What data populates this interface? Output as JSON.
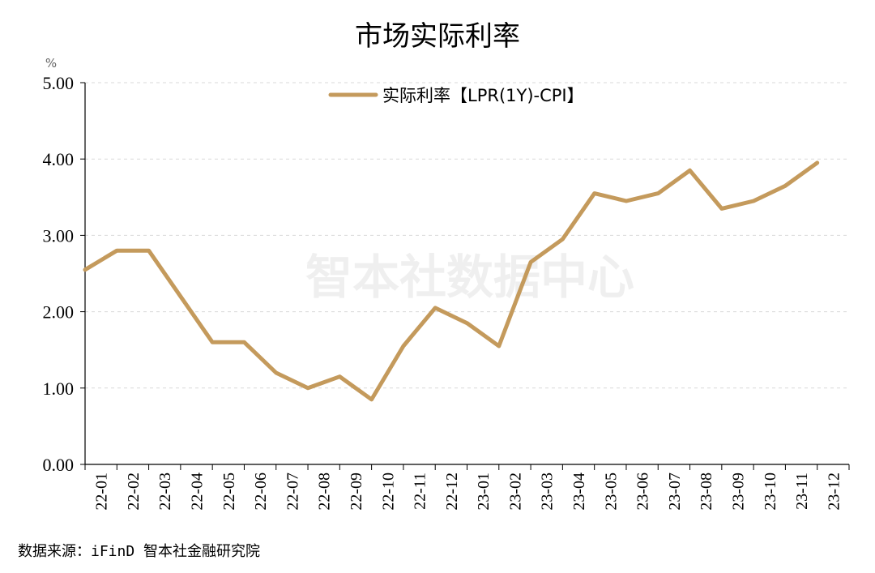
{
  "chart_data": {
    "type": "line",
    "title": "市场实际利率",
    "ylabel": "%",
    "ylim": [
      0,
      5
    ],
    "yticks": [
      "0.00",
      "1.00",
      "2.00",
      "3.00",
      "4.00",
      "5.00"
    ],
    "categories": [
      "22-01",
      "22-02",
      "22-03",
      "22-04",
      "22-05",
      "22-06",
      "22-07",
      "22-08",
      "22-09",
      "22-10",
      "22-11",
      "22-12",
      "23-01",
      "23-02",
      "23-03",
      "23-04",
      "23-05",
      "23-06",
      "23-07",
      "23-08",
      "23-09",
      "23-10",
      "23-11",
      "23-12"
    ],
    "series": [
      {
        "name": "实际利率【LPR(1Y)-CPI】",
        "color": "#c49a5c",
        "values": [
          2.55,
          2.8,
          2.8,
          2.2,
          1.6,
          1.6,
          1.2,
          1.0,
          1.15,
          0.85,
          1.55,
          2.05,
          1.85,
          1.55,
          2.65,
          2.95,
          3.55,
          3.45,
          3.55,
          3.85,
          3.35,
          3.45,
          3.65,
          3.95
        ]
      }
    ],
    "grid": true,
    "legend": "top-center"
  },
  "watermark": "智本社数据中心",
  "source": "数据来源：iFinD 智本社金融研究院"
}
